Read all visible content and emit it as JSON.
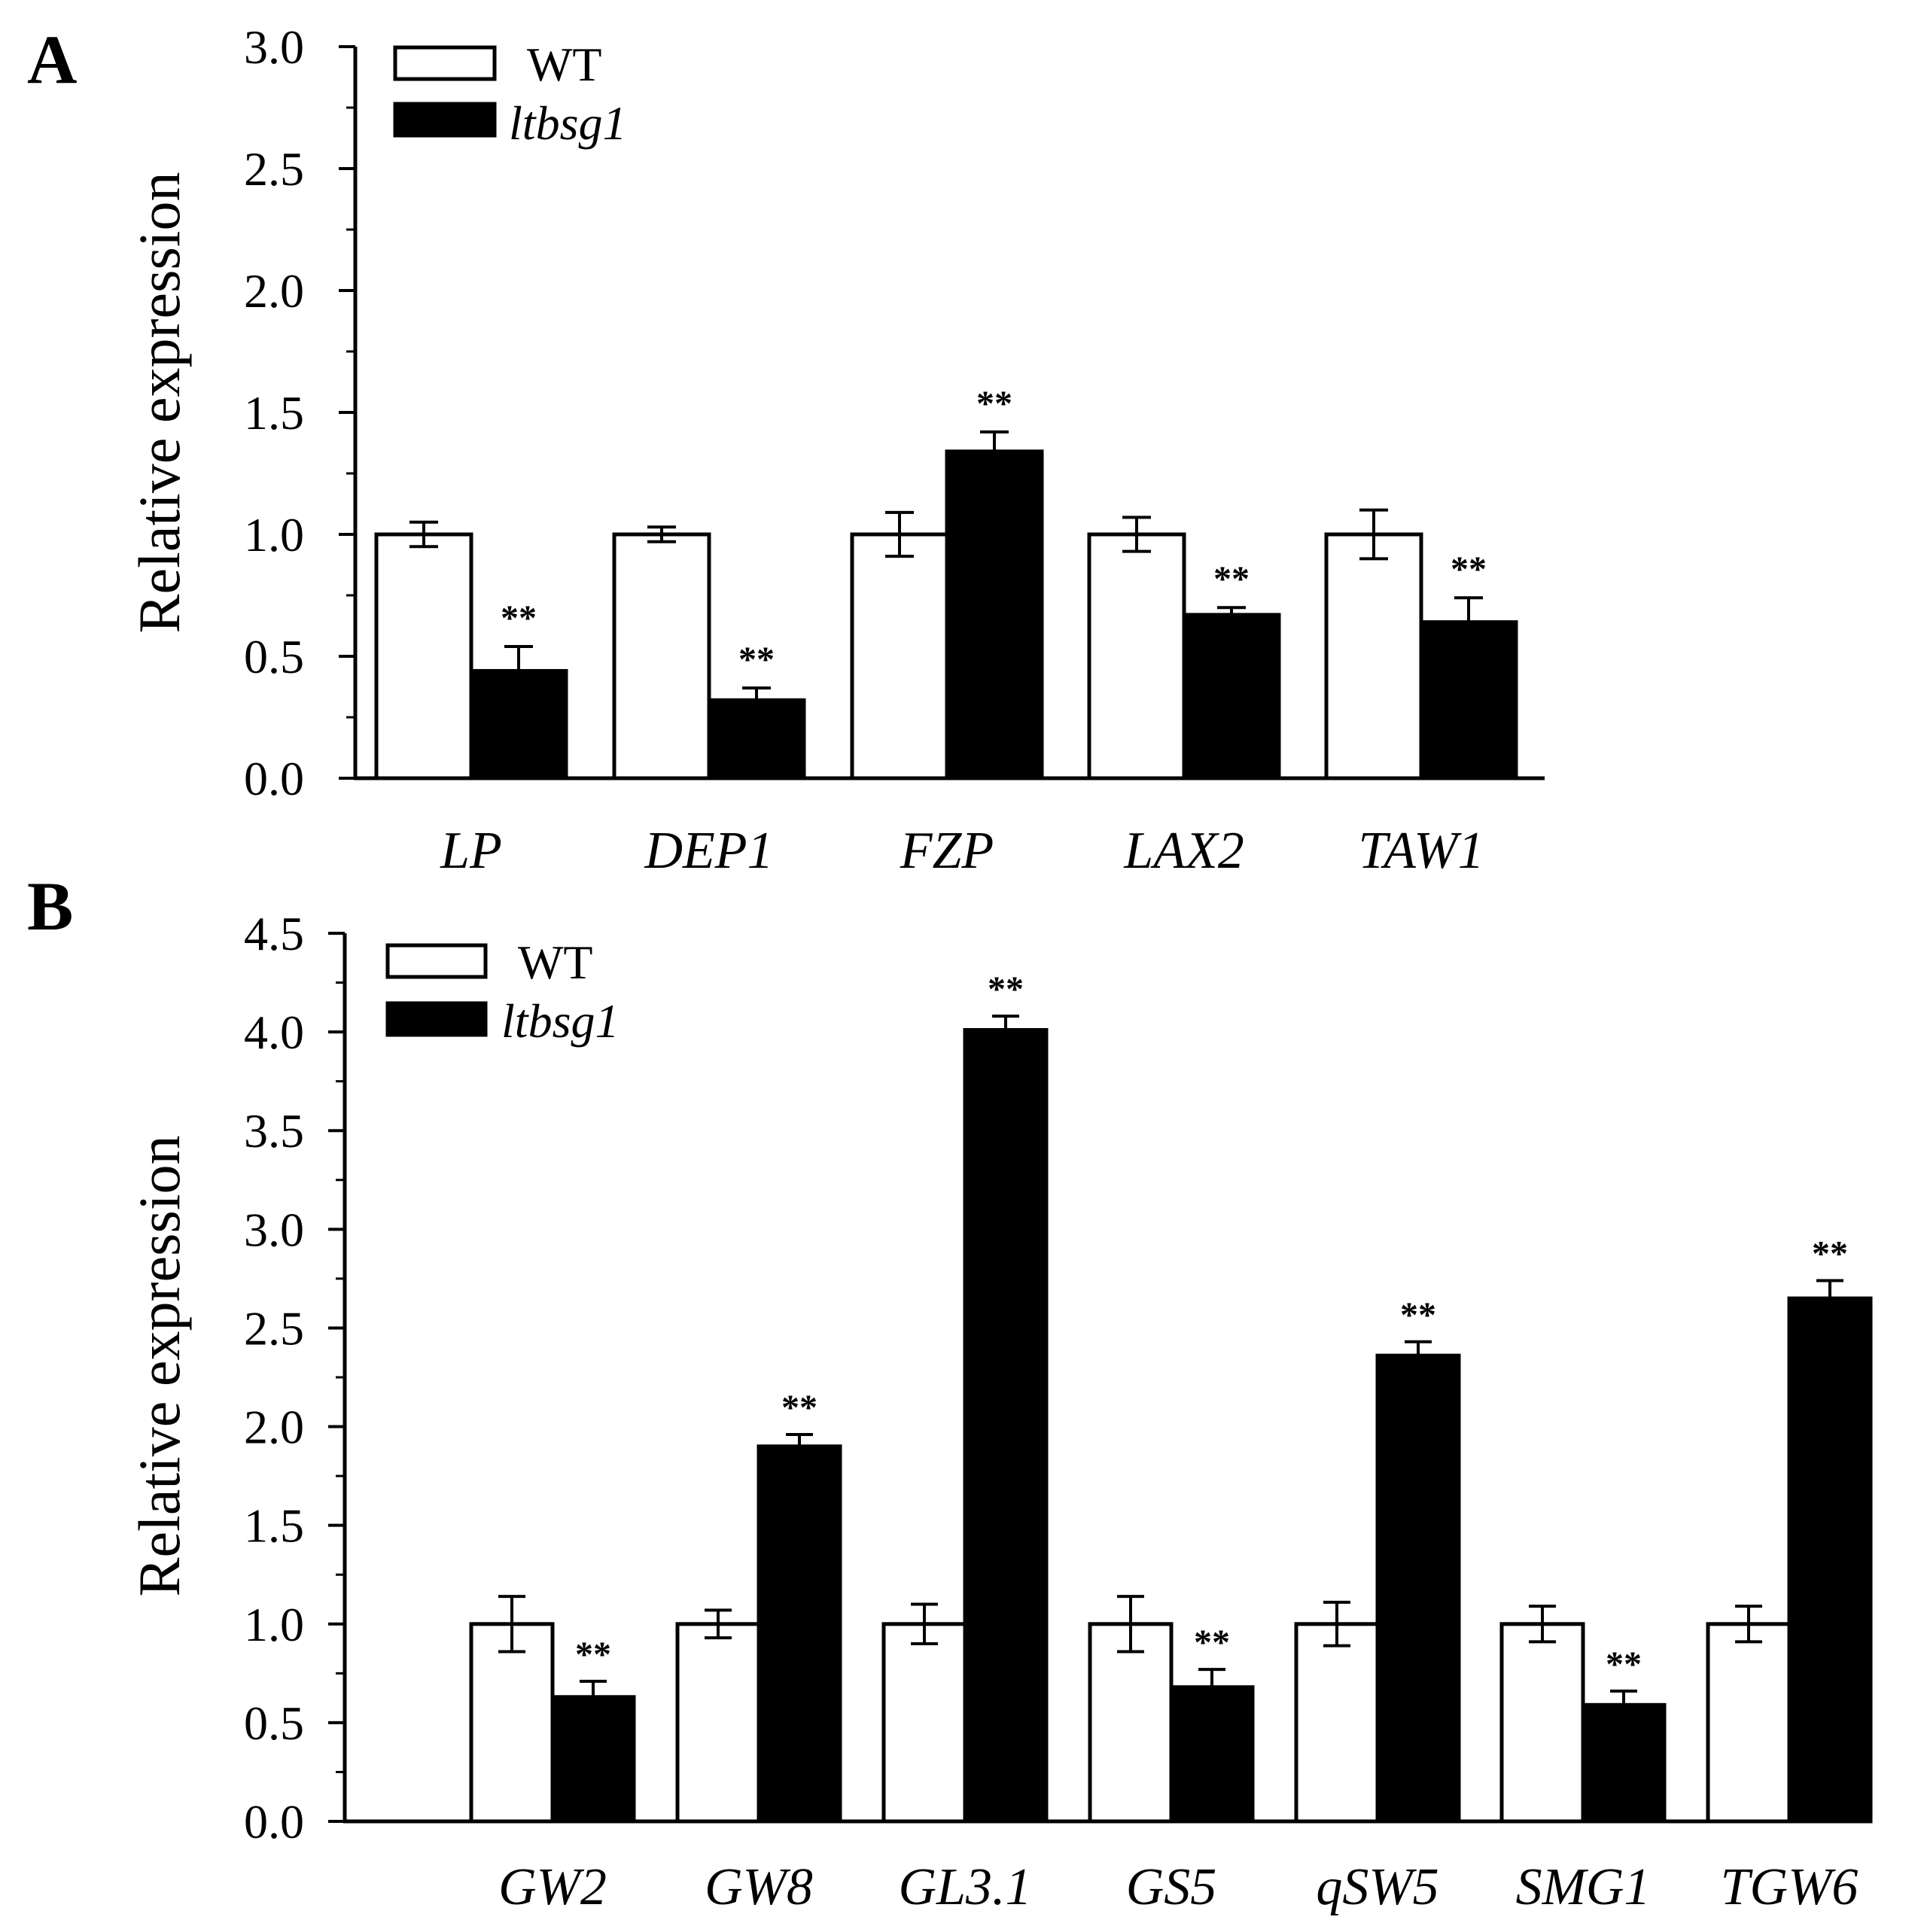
{
  "chart_data": [
    {
      "type": "bar",
      "panel": "A",
      "ylabel": "Relative expression",
      "xlabel": "",
      "ylim": [
        0,
        3.0
      ],
      "yticks": [
        "0.0",
        "0.5",
        "1.0",
        "1.5",
        "2.0",
        "2.5",
        "3.0"
      ],
      "categories": [
        "LP",
        "DEP1",
        "FZP",
        "LAX2",
        "TAW1"
      ],
      "legend_position": "top-left",
      "series": [
        {
          "name": "WT",
          "fill": "#ffffff",
          "values": [
            1.0,
            1.0,
            1.0,
            1.0,
            1.0
          ],
          "errors": [
            0.05,
            0.03,
            0.09,
            0.07,
            0.1
          ]
        },
        {
          "name": "ltbsg1",
          "fill": "#000000",
          "values": [
            0.44,
            0.32,
            1.34,
            0.67,
            0.64
          ],
          "errors": [
            0.1,
            0.05,
            0.08,
            0.03,
            0.1
          ]
        }
      ],
      "significance": [
        "**",
        "**",
        "**",
        "**",
        "**"
      ]
    },
    {
      "type": "bar",
      "panel": "B",
      "ylabel": "Relative expression",
      "xlabel": "",
      "ylim": [
        0,
        4.5
      ],
      "yticks": [
        "0.0",
        "0.5",
        "1.0",
        "1.5",
        "2.0",
        "2.5",
        "3.0",
        "3.5",
        "4.0",
        "4.5"
      ],
      "categories": [
        "GW2",
        "GW8",
        "GL3.1",
        "GS5",
        "qSW5",
        "SMG1",
        "TGW6"
      ],
      "legend_position": "top-left",
      "series": [
        {
          "name": "WT",
          "fill": "#ffffff",
          "values": [
            1.0,
            1.0,
            1.0,
            1.0,
            1.0,
            1.0,
            1.0
          ],
          "errors": [
            0.14,
            0.07,
            0.1,
            0.14,
            0.11,
            0.09,
            0.09
          ]
        },
        {
          "name": "ltbsg1",
          "fill": "#000000",
          "values": [
            0.63,
            1.9,
            4.01,
            0.68,
            2.36,
            0.59,
            2.65
          ],
          "errors": [
            0.08,
            0.06,
            0.07,
            0.09,
            0.07,
            0.07,
            0.09
          ]
        }
      ],
      "significance": [
        "**",
        "**",
        "**",
        "**",
        "**",
        "**",
        "**"
      ]
    }
  ]
}
